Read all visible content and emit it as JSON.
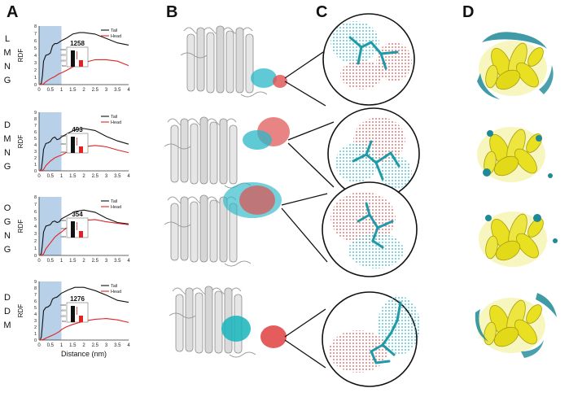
{
  "figure": {
    "panel_letters": [
      "A",
      "B",
      "C",
      "D"
    ],
    "rows": [
      {
        "label": [
          "L",
          "M",
          "N",
          "G"
        ],
        "value": "1258",
        "inset_yticks": [
          "2000",
          "1500",
          "1000",
          "500"
        ],
        "chart_index": 0
      },
      {
        "label": [
          "D",
          "M",
          "N",
          "G"
        ],
        "value": "493",
        "inset_yticks": [
          "2000",
          "1500",
          "1000"
        ],
        "chart_index": 1
      },
      {
        "label": [
          "O",
          "G",
          "N",
          "G"
        ],
        "value": "354",
        "inset_yticks": [
          "2000",
          "1500",
          "1000"
        ],
        "chart_index": 2
      },
      {
        "label": [
          "D",
          "D",
          "M"
        ],
        "value": "1276",
        "inset_yticks": [
          "2000",
          "1500",
          "1000",
          "500"
        ],
        "chart_index": 3
      }
    ],
    "colors": {
      "tail": "#111111",
      "head": "#e02424",
      "shade": "#b8d0e8",
      "cyan": "#2ab8c8",
      "red": "#e05050",
      "protein_gray": "#d9d9d9",
      "protein_yellow": "#e8e020",
      "density_teal": "#1e8a96"
    }
  },
  "chart_data": [
    {
      "type": "line",
      "ylabel": "RDF",
      "xlabel": "",
      "xlim": [
        0,
        4
      ],
      "ylim": [
        0,
        8
      ],
      "xticks": [
        "0",
        "0.5",
        "1",
        "1.5",
        "2",
        "2.5",
        "3",
        "3.5",
        "4"
      ],
      "yticks": [
        "0",
        "1",
        "2",
        "3",
        "4",
        "5",
        "6",
        "7",
        "8"
      ],
      "shaded_x": [
        0,
        1
      ],
      "series": [
        {
          "name": "Tail",
          "x": [
            0,
            0.05,
            0.1,
            0.15,
            0.2,
            0.3,
            0.4,
            0.5,
            0.6,
            0.7,
            0.8,
            0.9,
            1.0,
            1.2,
            1.5,
            1.8,
            2.0,
            2.5,
            3.0,
            3.5,
            4.0
          ],
          "y": [
            0,
            0,
            0.2,
            1.2,
            3.2,
            4.0,
            4.1,
            4.3,
            5.3,
            5.6,
            5.6,
            5.8,
            6.0,
            6.3,
            6.9,
            7.1,
            7.1,
            6.9,
            6.3,
            5.7,
            5.4
          ]
        },
        {
          "name": "Head",
          "x": [
            0,
            0.1,
            0.2,
            0.3,
            0.5,
            0.7,
            0.9,
            1.0,
            1.2,
            1.5,
            2.0,
            2.5,
            3.0,
            3.5,
            4.0
          ],
          "y": [
            0,
            0,
            0.1,
            0.4,
            0.8,
            1.1,
            1.5,
            1.6,
            1.9,
            2.4,
            3.0,
            3.4,
            3.4,
            3.2,
            2.6
          ]
        }
      ]
    },
    {
      "type": "line",
      "ylabel": "RDF",
      "xlabel": "",
      "xlim": [
        0,
        4
      ],
      "ylim": [
        0,
        9
      ],
      "xticks": [
        "0",
        "0.5",
        "1",
        "1.5",
        "2",
        "2.5",
        "3",
        "3.5",
        "4"
      ],
      "yticks": [
        "0",
        "1",
        "2",
        "3",
        "4",
        "5",
        "6",
        "7",
        "8",
        "9"
      ],
      "shaded_x": [
        0,
        1
      ],
      "series": [
        {
          "name": "Tail",
          "x": [
            0,
            0.05,
            0.1,
            0.15,
            0.2,
            0.3,
            0.4,
            0.5,
            0.6,
            0.7,
            0.8,
            0.9,
            1.0,
            1.3,
            1.6,
            2.0,
            2.5,
            3.0,
            3.5,
            4.0
          ],
          "y": [
            0,
            0,
            0.3,
            1.5,
            3.3,
            4.2,
            4.3,
            4.5,
            5.0,
            5.2,
            4.8,
            4.9,
            5.2,
            5.8,
            6.3,
            6.5,
            6.2,
            5.3,
            4.6,
            4.1
          ]
        },
        {
          "name": "Head",
          "x": [
            0,
            0.1,
            0.2,
            0.3,
            0.5,
            0.7,
            0.9,
            1.0,
            1.2,
            1.5,
            2.0,
            2.5,
            3.0,
            3.5,
            4.0
          ],
          "y": [
            0,
            0,
            0.2,
            0.8,
            1.5,
            2.0,
            2.3,
            2.4,
            2.8,
            3.3,
            3.7,
            3.9,
            3.7,
            3.2,
            2.8
          ]
        }
      ]
    },
    {
      "type": "line",
      "ylabel": "RDF",
      "xlabel": "",
      "xlim": [
        0,
        4
      ],
      "ylim": [
        0,
        8
      ],
      "xticks": [
        "0",
        "0.5",
        "1",
        "1.5",
        "2",
        "2.5",
        "3",
        "3.5",
        "4"
      ],
      "yticks": [
        "0",
        "1",
        "2",
        "3",
        "4",
        "5",
        "6",
        "7",
        "8"
      ],
      "shaded_x": [
        0,
        1
      ],
      "series": [
        {
          "name": "Tail",
          "x": [
            0,
            0.05,
            0.1,
            0.15,
            0.2,
            0.3,
            0.4,
            0.5,
            0.6,
            0.7,
            0.8,
            0.9,
            1.0,
            1.3,
            1.6,
            2.0,
            2.5,
            3.0,
            3.5,
            4.0
          ],
          "y": [
            0,
            0,
            0.3,
            1.5,
            3.2,
            4.0,
            4.1,
            4.2,
            4.6,
            4.7,
            4.5,
            4.6,
            5.0,
            5.5,
            6.0,
            6.2,
            5.9,
            5.1,
            4.5,
            4.3
          ]
        },
        {
          "name": "Head",
          "x": [
            0,
            0.1,
            0.2,
            0.3,
            0.5,
            0.7,
            0.9,
            1.0,
            1.2,
            1.5,
            2.0,
            2.5,
            3.0,
            3.5,
            4.0
          ],
          "y": [
            0,
            0,
            0.2,
            0.9,
            1.7,
            2.5,
            3.0,
            3.2,
            3.7,
            4.3,
            4.8,
            4.9,
            4.6,
            4.4,
            4.2
          ]
        }
      ]
    },
    {
      "type": "line",
      "ylabel": "RDF",
      "xlabel": "Distance (nm)",
      "xlim": [
        0,
        4
      ],
      "ylim": [
        0,
        9
      ],
      "xticks": [
        "0",
        "0.5",
        "1",
        "1.5",
        "2",
        "2.5",
        "3",
        "3.5",
        "4"
      ],
      "yticks": [
        "0",
        "1",
        "2",
        "3",
        "4",
        "5",
        "6",
        "7",
        "8",
        "9"
      ],
      "shaded_x": [
        0,
        1
      ],
      "series": [
        {
          "name": "Tail",
          "x": [
            0,
            0.05,
            0.1,
            0.15,
            0.2,
            0.3,
            0.4,
            0.5,
            0.6,
            0.7,
            0.8,
            0.9,
            1.0,
            1.3,
            1.6,
            2.0,
            2.5,
            3.0,
            3.5,
            4.0
          ],
          "y": [
            0,
            0,
            0.5,
            2.3,
            4.5,
            5.0,
            5.1,
            5.4,
            6.3,
            6.5,
            6.6,
            6.9,
            7.2,
            7.7,
            8.1,
            8.1,
            7.6,
            6.9,
            6.1,
            5.8
          ]
        },
        {
          "name": "Head",
          "x": [
            0,
            0.1,
            0.2,
            0.3,
            0.5,
            0.7,
            0.9,
            1.0,
            1.2,
            1.5,
            2.0,
            2.5,
            3.0,
            3.5,
            4.0
          ],
          "y": [
            0,
            0,
            0.1,
            0.3,
            0.6,
            0.9,
            1.3,
            1.6,
            2.0,
            2.4,
            2.9,
            3.2,
            3.3,
            3.1,
            2.7
          ]
        }
      ]
    }
  ]
}
